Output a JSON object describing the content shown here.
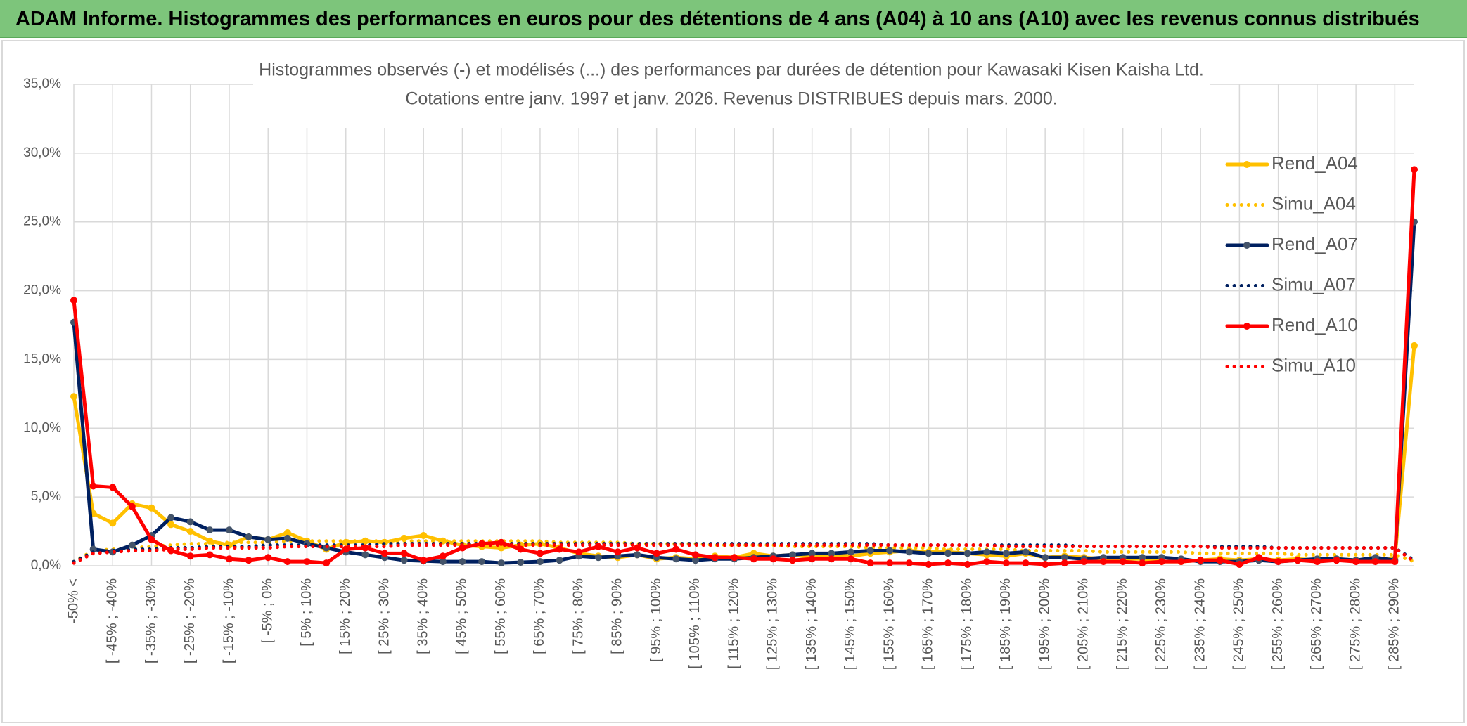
{
  "header": {
    "title": "ADAM Informe. Histogrammes des performances en euros pour des détentions de 4 ans (A04) à 10 ans (A10) avec les revenus connus distribués"
  },
  "chart_data": {
    "type": "line",
    "title": "Histogrammes observés (-) et modélisés (...) des performances par durées de détention pour Kawasaki Kisen Kaisha Ltd.",
    "subtitle": "Cotations entre janv. 1997 et janv. 2026. Revenus DISTRIBUES depuis mars. 2000.",
    "categories": [
      "-50% <",
      null,
      "[ -45% ; -40%",
      null,
      "[ -35% ; -30%",
      null,
      "[ -25% ; -20%",
      null,
      "[ -15% ; -10%",
      null,
      "[ -5% ; 0%",
      null,
      "[ 5% ; 10%",
      null,
      "[ 15% ; 20%",
      null,
      "[ 25% ; 30%",
      null,
      "[ 35% ; 40%",
      null,
      "[ 45% ; 50%",
      null,
      "[ 55% ; 60%",
      null,
      "[ 65% ; 70%",
      null,
      "[ 75% ; 80%",
      null,
      "[ 85% ; 90%",
      null,
      "[ 95% ; 100%",
      null,
      "[ 105% ; 110%",
      null,
      "[ 115% ; 120%",
      null,
      "[ 125% ; 130%",
      null,
      "[ 135% ; 140%",
      null,
      "[ 145% ; 150%",
      null,
      "[ 155% ; 160%",
      null,
      "[ 165% ; 170%",
      null,
      "[ 175% ; 180%",
      null,
      "[ 185% ; 190%",
      null,
      "[ 195% ; 200%",
      null,
      "[ 205% ; 210%",
      null,
      "[ 215% ; 220%",
      null,
      "[ 225% ; 230%",
      null,
      "[ 235% ; 240%",
      null,
      "[ 245% ; 250%",
      null,
      "[ 255% ; 260%",
      null,
      "[ 265% ; 270%",
      null,
      "[ 275% ; 280%",
      null,
      "[ 285% ; 290%",
      null
    ],
    "ylim": [
      0,
      35
    ],
    "yticks": [
      {
        "value": 0,
        "label": "0,0%"
      },
      {
        "value": 5,
        "label": "5,0%"
      },
      {
        "value": 10,
        "label": "10,0%"
      },
      {
        "value": 15,
        "label": "15,0%"
      },
      {
        "value": 20,
        "label": "20,0%"
      },
      {
        "value": 25,
        "label": "25,0%"
      },
      {
        "value": 30,
        "label": "30,0%"
      },
      {
        "value": 35,
        "label": "35,0%"
      }
    ],
    "grid": true,
    "legend": "right",
    "series": [
      {
        "name": "Rend_A04",
        "color": "#FFC000",
        "dotted": false,
        "values": [
          12.3,
          3.8,
          3.1,
          4.5,
          4.2,
          3.0,
          2.5,
          1.8,
          1.5,
          2.1,
          1.9,
          2.4,
          1.8,
          1.2,
          1.7,
          1.8,
          1.7,
          2.0,
          2.2,
          1.8,
          1.5,
          1.4,
          1.3,
          1.5,
          1.6,
          1.3,
          0.9,
          0.7,
          0.6,
          0.8,
          0.5,
          0.6,
          0.5,
          0.7,
          0.6,
          0.9,
          0.7,
          0.8,
          0.6,
          0.8,
          0.7,
          0.9,
          1.0,
          1.1,
          1.0,
          1.0,
          0.9,
          0.8,
          0.7,
          0.9,
          0.6,
          0.7,
          0.6,
          0.5,
          0.5,
          0.5,
          0.3,
          0.3,
          0.4,
          0.5,
          0.4,
          0.5,
          0.4,
          0.5,
          0.4,
          0.5,
          0.4,
          0.5,
          0.5,
          16.0
        ]
      },
      {
        "name": "Simu_A04",
        "color": "#FFC000",
        "dotted": true,
        "values": [
          0.3,
          1.1,
          1.2,
          1.3,
          1.4,
          1.5,
          1.6,
          1.6,
          1.7,
          1.7,
          1.7,
          1.8,
          1.8,
          1.8,
          1.8,
          1.8,
          1.8,
          1.8,
          1.8,
          1.8,
          1.8,
          1.8,
          1.8,
          1.8,
          1.8,
          1.7,
          1.7,
          1.7,
          1.7,
          1.6,
          1.6,
          1.6,
          1.6,
          1.5,
          1.5,
          1.5,
          1.5,
          1.4,
          1.4,
          1.4,
          1.4,
          1.3,
          1.3,
          1.3,
          1.3,
          1.2,
          1.2,
          1.2,
          1.2,
          1.1,
          1.1,
          1.1,
          1.1,
          1.0,
          1.0,
          1.0,
          1.0,
          1.0,
          0.9,
          0.9,
          0.9,
          0.9,
          0.9,
          0.8,
          0.8,
          0.8,
          0.8,
          0.8,
          0.8,
          0.3
        ]
      },
      {
        "name": "Rend_A07",
        "color": "#002060",
        "marker_color": "#44546A",
        "dotted": false,
        "values": [
          17.7,
          1.2,
          1.0,
          1.5,
          2.2,
          3.5,
          3.2,
          2.6,
          2.6,
          2.1,
          1.9,
          2.0,
          1.6,
          1.3,
          1.0,
          0.8,
          0.6,
          0.4,
          0.35,
          0.3,
          0.3,
          0.3,
          0.2,
          0.25,
          0.3,
          0.4,
          0.7,
          0.6,
          0.7,
          0.8,
          0.6,
          0.5,
          0.4,
          0.5,
          0.5,
          0.6,
          0.7,
          0.8,
          0.9,
          0.9,
          1.0,
          1.1,
          1.1,
          1.0,
          0.9,
          0.9,
          0.9,
          1.0,
          0.9,
          1.0,
          0.6,
          0.6,
          0.5,
          0.6,
          0.6,
          0.6,
          0.6,
          0.5,
          0.3,
          0.3,
          0.3,
          0.4,
          0.3,
          0.4,
          0.5,
          0.5,
          0.4,
          0.6,
          0.4,
          25.0
        ]
      },
      {
        "name": "Simu_A07",
        "color": "#002060",
        "dotted": true,
        "values": [
          0.3,
          1.0,
          1.1,
          1.2,
          1.2,
          1.3,
          1.3,
          1.4,
          1.4,
          1.4,
          1.5,
          1.5,
          1.5,
          1.5,
          1.5,
          1.5,
          1.6,
          1.6,
          1.6,
          1.6,
          1.6,
          1.6,
          1.6,
          1.6,
          1.6,
          1.6,
          1.6,
          1.6,
          1.6,
          1.6,
          1.6,
          1.6,
          1.6,
          1.6,
          1.6,
          1.6,
          1.6,
          1.6,
          1.6,
          1.6,
          1.6,
          1.6,
          1.5,
          1.5,
          1.5,
          1.5,
          1.5,
          1.5,
          1.5,
          1.5,
          1.5,
          1.5,
          1.4,
          1.4,
          1.4,
          1.4,
          1.4,
          1.4,
          1.4,
          1.4,
          1.4,
          1.4,
          1.3,
          1.3,
          1.3,
          1.3,
          1.3,
          1.3,
          1.3,
          0.4
        ]
      },
      {
        "name": "Rend_A10",
        "color": "#FF0000",
        "dotted": false,
        "values": [
          19.3,
          5.8,
          5.7,
          4.3,
          1.9,
          1.1,
          0.7,
          0.8,
          0.5,
          0.4,
          0.6,
          0.3,
          0.3,
          0.2,
          1.2,
          1.3,
          0.9,
          0.9,
          0.4,
          0.7,
          1.3,
          1.6,
          1.7,
          1.2,
          0.9,
          1.2,
          1.0,
          1.4,
          1.0,
          1.3,
          0.9,
          1.2,
          0.8,
          0.6,
          0.6,
          0.5,
          0.5,
          0.4,
          0.5,
          0.5,
          0.5,
          0.2,
          0.2,
          0.2,
          0.1,
          0.2,
          0.1,
          0.3,
          0.2,
          0.2,
          0.1,
          0.2,
          0.3,
          0.3,
          0.3,
          0.2,
          0.3,
          0.3,
          0.4,
          0.4,
          0.1,
          0.6,
          0.3,
          0.4,
          0.3,
          0.4,
          0.3,
          0.3,
          0.3,
          28.8
        ]
      },
      {
        "name": "Simu_A10",
        "color": "#FF0000",
        "dotted": true,
        "values": [
          0.2,
          0.9,
          1.0,
          1.1,
          1.1,
          1.2,
          1.2,
          1.3,
          1.3,
          1.3,
          1.3,
          1.4,
          1.4,
          1.4,
          1.4,
          1.4,
          1.4,
          1.5,
          1.5,
          1.5,
          1.5,
          1.5,
          1.5,
          1.5,
          1.5,
          1.5,
          1.5,
          1.5,
          1.5,
          1.5,
          1.5,
          1.5,
          1.5,
          1.5,
          1.5,
          1.5,
          1.5,
          1.5,
          1.5,
          1.5,
          1.5,
          1.5,
          1.5,
          1.5,
          1.5,
          1.5,
          1.5,
          1.5,
          1.4,
          1.4,
          1.4,
          1.4,
          1.4,
          1.4,
          1.4,
          1.4,
          1.4,
          1.4,
          1.4,
          1.3,
          1.3,
          1.3,
          1.3,
          1.3,
          1.3,
          1.3,
          1.3,
          1.3,
          1.3,
          0.3
        ]
      }
    ]
  }
}
